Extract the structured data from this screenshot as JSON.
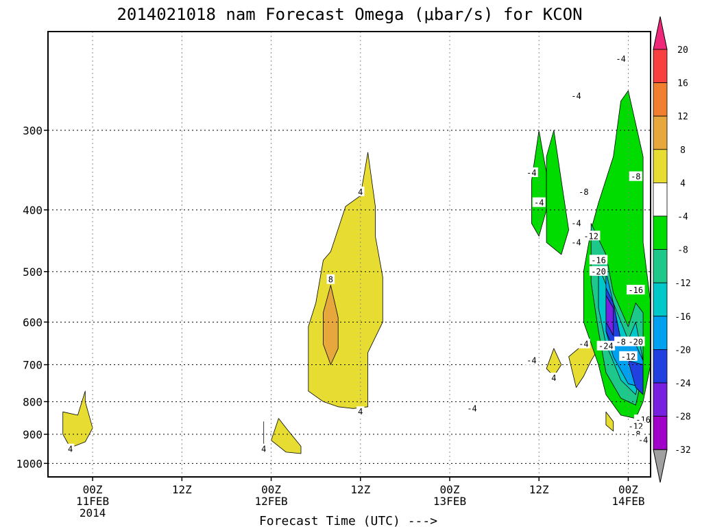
{
  "chart_data": {
    "type": "contour",
    "title": "2014021018 nam Forecast Omega (μbar/s) for KCON",
    "xlabel": "Forecast Time (UTC) --->",
    "ylabel": "",
    "y_axis": {
      "scale": "pressure-inverted",
      "ylim": [
        1050,
        210
      ],
      "ticks": [
        300,
        400,
        500,
        600,
        700,
        800,
        900,
        1000
      ]
    },
    "x_axis": {
      "xlim": [
        "2014-02-10 18Z",
        "2014-02-14 03Z"
      ],
      "ticks": [
        {
          "time": "2014-02-11 00Z",
          "lines": [
            "00Z",
            "11FEB",
            "2014"
          ]
        },
        {
          "time": "2014-02-11 12Z",
          "lines": [
            "12Z"
          ]
        },
        {
          "time": "2014-02-12 00Z",
          "lines": [
            "00Z",
            "12FEB"
          ]
        },
        {
          "time": "2014-02-12 12Z",
          "lines": [
            "12Z"
          ]
        },
        {
          "time": "2014-02-13 00Z",
          "lines": [
            "00Z",
            "13FEB"
          ]
        },
        {
          "time": "2014-02-13 12Z",
          "lines": [
            "12Z"
          ]
        },
        {
          "time": "2014-02-14 00Z",
          "lines": [
            "00Z",
            "14FEB"
          ]
        }
      ]
    },
    "grid": true,
    "colorbar": {
      "position": "right",
      "levels": [
        {
          "label": "20",
          "color": "#f0287a"
        },
        {
          "label": "16",
          "color": "#f84040"
        },
        {
          "label": "12",
          "color": "#f08030"
        },
        {
          "label": "8",
          "color": "#e6a83c"
        },
        {
          "label": "4",
          "color": "#e6dc32"
        },
        {
          "label": "-4",
          "color": "#ffffff"
        },
        {
          "label": "-8",
          "color": "#00dc00"
        },
        {
          "label": "-12",
          "color": "#1ec88a"
        },
        {
          "label": "-16",
          "color": "#00c8c8"
        },
        {
          "label": "-20",
          "color": "#00a0f0"
        },
        {
          "label": "-24",
          "color": "#2040e0"
        },
        {
          "label": "-28",
          "color": "#7820e0"
        },
        {
          "label": "-32",
          "color": "#a000c8"
        }
      ],
      "over_color": "#f0287a",
      "under_color": "#a0a0a0"
    },
    "regions": [
      {
        "level": 4,
        "color": "#e6dc32",
        "points": [
          [
            "2014-02-10 23Z",
            770
          ],
          [
            "2014-02-10 22Z",
            840
          ],
          [
            "2014-02-10 20Z",
            830
          ],
          [
            "2014-02-10 20Z",
            900
          ],
          [
            "2014-02-10 21Z",
            945
          ],
          [
            "2014-02-10 23Z",
            925
          ],
          [
            "2014-02-11 00Z",
            880
          ],
          [
            "2014-02-10 23Z",
            800
          ]
        ]
      },
      {
        "level": 4,
        "color": "#e6dc32",
        "points": [
          [
            "2014-02-11 23Z",
            860
          ],
          [
            "2014-02-11 23Z",
            950
          ],
          [
            "2014-02-11 23Z",
            930
          ],
          [
            "2014-02-11 23Z",
            880
          ]
        ]
      },
      {
        "level": 4,
        "color": "#e6dc32",
        "points": [
          [
            "2014-02-12 01Z",
            850
          ],
          [
            "2014-02-12 00Z",
            920
          ],
          [
            "2014-02-12 02Z",
            960
          ],
          [
            "2014-02-12 04Z",
            965
          ],
          [
            "2014-02-12 04Z",
            940
          ],
          [
            "2014-02-12 02Z",
            880
          ]
        ]
      },
      {
        "level": 4,
        "color": "#e6dc32",
        "points": [
          [
            "2014-02-12 13Z",
            325
          ],
          [
            "2014-02-12 12Z",
            380
          ],
          [
            "2014-02-12 10Z",
            395
          ],
          [
            "2014-02-12 08Z",
            465
          ],
          [
            "2014-02-12 07Z",
            480
          ],
          [
            "2014-02-12 06Z",
            560
          ],
          [
            "2014-02-12 05Z",
            610
          ],
          [
            "2014-02-12 05Z",
            770
          ],
          [
            "2014-02-12 07Z",
            800
          ],
          [
            "2014-02-12 09Z",
            815
          ],
          [
            "2014-02-12 11Z",
            820
          ],
          [
            "2014-02-12 13Z",
            815
          ],
          [
            "2014-02-12 13Z",
            670
          ],
          [
            "2014-02-12 15Z",
            600
          ],
          [
            "2014-02-12 15Z",
            510
          ],
          [
            "2014-02-12 14Z",
            440
          ],
          [
            "2014-02-12 14Z",
            395
          ]
        ]
      },
      {
        "level": 8,
        "color": "#e6a83c",
        "points": [
          [
            "2014-02-12 08Z",
            525
          ],
          [
            "2014-02-12 07Z",
            580
          ],
          [
            "2014-02-12 07Z",
            650
          ],
          [
            "2014-02-12 08Z",
            700
          ],
          [
            "2014-02-12 09Z",
            660
          ],
          [
            "2014-02-12 09Z",
            590
          ]
        ]
      },
      {
        "level": 4,
        "color": "#e6dc32",
        "points": [
          [
            "2014-02-13 14Z",
            660
          ],
          [
            "2014-02-13 13Z",
            710
          ],
          [
            "2014-02-13 14Z",
            730
          ],
          [
            "2014-02-13 15Z",
            700
          ]
        ]
      },
      {
        "level": 4,
        "color": "#e6dc32",
        "points": [
          [
            "2014-02-13 18Z",
            650
          ],
          [
            "2014-02-13 16Z",
            680
          ],
          [
            "2014-02-13 17Z",
            760
          ],
          [
            "2014-02-13 18Z",
            730
          ],
          [
            "2014-02-13 19Z",
            690
          ],
          [
            "2014-02-13 20Z",
            660
          ],
          [
            "2014-02-13 19Z",
            640
          ]
        ]
      },
      {
        "level": 4,
        "color": "#e6dc32",
        "points": [
          [
            "2014-02-13 21Z",
            830
          ],
          [
            "2014-02-13 21Z",
            870
          ],
          [
            "2014-02-13 22Z",
            890
          ],
          [
            "2014-02-13 22Z",
            860
          ]
        ]
      },
      {
        "level": -4,
        "color": "#00dc00",
        "points": [
          [
            "2014-02-13 12Z",
            300
          ],
          [
            "2014-02-13 11Z",
            360
          ],
          [
            "2014-02-13 11Z",
            420
          ],
          [
            "2014-02-13 12Z",
            440
          ],
          [
            "2014-02-13 13Z",
            400
          ],
          [
            "2014-02-13 13Z",
            350
          ]
        ]
      },
      {
        "level": -4,
        "color": "#00dc00",
        "points": [
          [
            "2014-02-13 14Z",
            300
          ],
          [
            "2014-02-13 13Z",
            330
          ],
          [
            "2014-02-13 13Z",
            450
          ],
          [
            "2014-02-13 15Z",
            470
          ],
          [
            "2014-02-13 16Z",
            430
          ],
          [
            "2014-02-13 15Z",
            360
          ]
        ]
      },
      {
        "level": -4,
        "color": "#00dc00",
        "points": [
          [
            "2014-02-14 00Z",
            260
          ],
          [
            "2014-02-13 23Z",
            270
          ],
          [
            "2014-02-13 22Z",
            330
          ],
          [
            "2014-02-13 20Z",
            390
          ],
          [
            "2014-02-13 19Z",
            430
          ],
          [
            "2014-02-13 18Z",
            500
          ],
          [
            "2014-02-13 18Z",
            600
          ],
          [
            "2014-02-13 20Z",
            700
          ],
          [
            "2014-02-13 21Z",
            780
          ],
          [
            "2014-02-13 23Z",
            840
          ],
          [
            "2014-02-14 01Z",
            850
          ],
          [
            "2014-02-14 02Z",
            800
          ],
          [
            "2014-02-14 03Z",
            700
          ],
          [
            "2014-02-14 03Z",
            560
          ],
          [
            "2014-02-14 02Z",
            450
          ],
          [
            "2014-02-14 02Z",
            330
          ]
        ]
      },
      {
        "level": -8,
        "color": "#1ec88a",
        "points": [
          [
            "2014-02-13 19Z",
            420
          ],
          [
            "2014-02-13 19Z",
            520
          ],
          [
            "2014-02-13 20Z",
            620
          ],
          [
            "2014-02-13 21Z",
            720
          ],
          [
            "2014-02-13 23Z",
            790
          ],
          [
            "2014-02-14 01Z",
            810
          ],
          [
            "2014-02-14 02Z",
            720
          ],
          [
            "2014-02-14 02Z",
            580
          ],
          [
            "2014-02-14 01Z",
            560
          ],
          [
            "2014-02-14 00Z",
            610
          ],
          [
            "2014-02-13 22Z",
            540
          ],
          [
            "2014-02-13 21Z",
            470
          ]
        ]
      },
      {
        "level": -12,
        "color": "#00c8c8",
        "points": [
          [
            "2014-02-13 20Z",
            490
          ],
          [
            "2014-02-13 20Z",
            570
          ],
          [
            "2014-02-13 21Z",
            650
          ],
          [
            "2014-02-13 23Z",
            740
          ],
          [
            "2014-02-14 01Z",
            780
          ],
          [
            "2014-02-14 02Z",
            690
          ],
          [
            "2014-02-14 01Z",
            600
          ],
          [
            "2014-02-14 00Z",
            640
          ],
          [
            "2014-02-13 22Z",
            560
          ]
        ]
      },
      {
        "level": -16,
        "color": "#00a0f0",
        "points": [
          [
            "2014-02-13 21Z",
            500
          ],
          [
            "2014-02-13 21Z",
            620
          ],
          [
            "2014-02-13 22Z",
            680
          ],
          [
            "2014-02-14 00Z",
            750
          ],
          [
            "2014-02-14 02Z",
            760
          ],
          [
            "2014-02-14 02Z",
            690
          ],
          [
            "2014-02-14 01Z",
            650
          ],
          [
            "2014-02-13 23Z",
            640
          ],
          [
            "2014-02-13 22Z",
            560
          ]
        ]
      },
      {
        "level": -20,
        "color": "#2040e0",
        "points": [
          [
            "2014-02-13 21Z",
            530
          ],
          [
            "2014-02-13 21Z",
            620
          ],
          [
            "2014-02-13 22Z",
            660
          ],
          [
            "2014-02-13 23Z",
            640
          ],
          [
            "2014-02-13 22Z",
            560
          ]
        ]
      },
      {
        "level": -24,
        "color": "#7820e0",
        "points": [
          [
            "2014-02-13 21Z",
            545
          ],
          [
            "2014-02-13 21Z",
            600
          ],
          [
            "2014-02-13 22Z",
            630
          ],
          [
            "2014-02-13 22Z",
            570
          ]
        ]
      },
      {
        "level": -20,
        "color": "#2040e0",
        "points": [
          [
            "2014-02-14 00Z",
            690
          ],
          [
            "2014-02-14 01Z",
            760
          ],
          [
            "2014-02-14 02Z",
            780
          ],
          [
            "2014-02-14 02Z",
            700
          ]
        ]
      }
    ],
    "contour_labels": [
      {
        "text": "4",
        "time": "2014-02-10 21Z",
        "p": 950
      },
      {
        "text": "4",
        "time": "2014-02-11 23Z",
        "p": 950
      },
      {
        "text": "4",
        "time": "2014-02-12 12Z",
        "p": 375
      },
      {
        "text": "8",
        "time": "2014-02-12 08Z",
        "p": 515
      },
      {
        "text": "4",
        "time": "2014-02-12 12Z",
        "p": 830
      },
      {
        "text": "-4",
        "time": "2014-02-13 03Z",
        "p": 820
      },
      {
        "text": "-4",
        "time": "2014-02-13 11Z",
        "p": 690
      },
      {
        "text": "-4",
        "time": "2014-02-13 11Z",
        "p": 350
      },
      {
        "text": "-4",
        "time": "2014-02-13 12Z",
        "p": 390
      },
      {
        "text": "-4",
        "time": "2014-02-13 17Z",
        "p": 265
      },
      {
        "text": "-4",
        "time": "2014-02-13 23Z",
        "p": 232
      },
      {
        "text": "-8",
        "time": "2014-02-13 18Z",
        "p": 375
      },
      {
        "text": "-8",
        "time": "2014-02-14 01Z",
        "p": 355
      },
      {
        "text": "-4",
        "time": "2014-02-13 17Z",
        "p": 420
      },
      {
        "text": "-12",
        "time": "2014-02-13 19Z",
        "p": 440
      },
      {
        "text": "-4",
        "time": "2014-02-13 17Z",
        "p": 450
      },
      {
        "text": "-16",
        "time": "2014-02-13 20Z",
        "p": 480
      },
      {
        "text": "-20",
        "time": "2014-02-13 20Z",
        "p": 500
      },
      {
        "text": "-16",
        "time": "2014-02-14 01Z",
        "p": 535
      },
      {
        "text": "-4",
        "time": "2014-02-13 18Z",
        "p": 650
      },
      {
        "text": "-24",
        "time": "2014-02-13 21Z",
        "p": 655
      },
      {
        "text": "-8",
        "time": "2014-02-13 23Z",
        "p": 645
      },
      {
        "text": "-20",
        "time": "2014-02-14 01Z",
        "p": 645
      },
      {
        "text": "-12",
        "time": "2014-02-14 00Z",
        "p": 680
      },
      {
        "text": "4",
        "time": "2014-02-13 14Z",
        "p": 735
      },
      {
        "text": "-16",
        "time": "2014-02-14 02Z",
        "p": 855
      },
      {
        "text": "-12",
        "time": "2014-02-14 01Z",
        "p": 875
      },
      {
        "text": "-8",
        "time": "2014-02-14 01Z",
        "p": 900
      },
      {
        "text": "-4",
        "time": "2014-02-14 02Z",
        "p": 920
      }
    ]
  }
}
